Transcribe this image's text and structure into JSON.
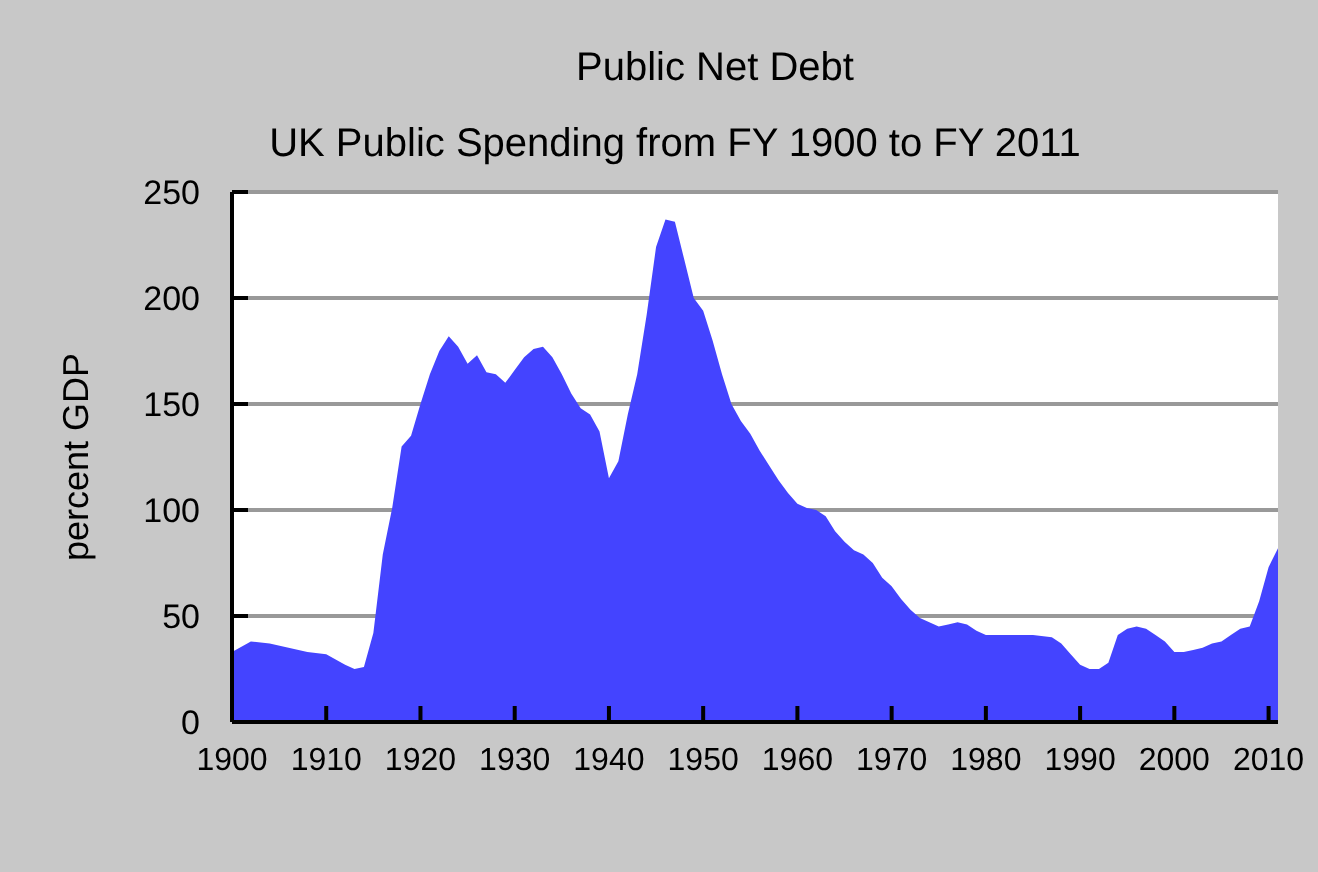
{
  "chart_data": {
    "type": "area",
    "title": "Public Net Debt",
    "subtitle": "UK Public Spending from FY 1900 to FY 2011",
    "ylabel": "percent GDP",
    "x": [
      1900,
      1902,
      1904,
      1906,
      1908,
      1910,
      1912,
      1913,
      1914,
      1915,
      1916,
      1917,
      1918,
      1919,
      1920,
      1921,
      1922,
      1923,
      1924,
      1925,
      1926,
      1927,
      1928,
      1929,
      1930,
      1931,
      1932,
      1933,
      1934,
      1935,
      1936,
      1937,
      1938,
      1939,
      1940,
      1941,
      1942,
      1943,
      1944,
      1945,
      1946,
      1947,
      1948,
      1949,
      1950,
      1951,
      1952,
      1953,
      1954,
      1955,
      1956,
      1957,
      1958,
      1959,
      1960,
      1961,
      1962,
      1963,
      1964,
      1965,
      1966,
      1967,
      1968,
      1969,
      1970,
      1971,
      1972,
      1973,
      1974,
      1975,
      1976,
      1977,
      1978,
      1979,
      1980,
      1982,
      1985,
      1987,
      1988,
      1989,
      1990,
      1991,
      1992,
      1993,
      1994,
      1995,
      1996,
      1997,
      1998,
      1999,
      2000,
      2001,
      2002,
      2003,
      2004,
      2005,
      2006,
      2007,
      2008,
      2009,
      2010,
      2011
    ],
    "series": [
      {
        "color": "#4444ff",
        "values": [
          33,
          38,
          37,
          35,
          33,
          32,
          27,
          25,
          26,
          42,
          79,
          101,
          130,
          135,
          150,
          164,
          175,
          182,
          177,
          169,
          173,
          165,
          164,
          160,
          166,
          172,
          176,
          177,
          172,
          164,
          155,
          148,
          145,
          137,
          115,
          123,
          145,
          164,
          192,
          224,
          237,
          236,
          218,
          200,
          194,
          180,
          164,
          150,
          142,
          136,
          128,
          121,
          114,
          108,
          103,
          101,
          100,
          97,
          90,
          85,
          81,
          79,
          75,
          68,
          64,
          58,
          53,
          49,
          47,
          45,
          46,
          47,
          46,
          43,
          41,
          41,
          41,
          40,
          37,
          32,
          27,
          25,
          25,
          28,
          41,
          44,
          45,
          44,
          41,
          38,
          33,
          33,
          34,
          35,
          37,
          38,
          41,
          44,
          45,
          57,
          73,
          82
        ]
      }
    ],
    "xlim": [
      1900,
      2011
    ],
    "xticks": [
      1900,
      1910,
      1920,
      1930,
      1940,
      1950,
      1960,
      1970,
      1980,
      1990,
      2000,
      2010
    ],
    "ylim": [
      0,
      250
    ],
    "yticks": [
      0,
      50,
      100,
      150,
      200,
      250
    ],
    "grid": "y"
  }
}
